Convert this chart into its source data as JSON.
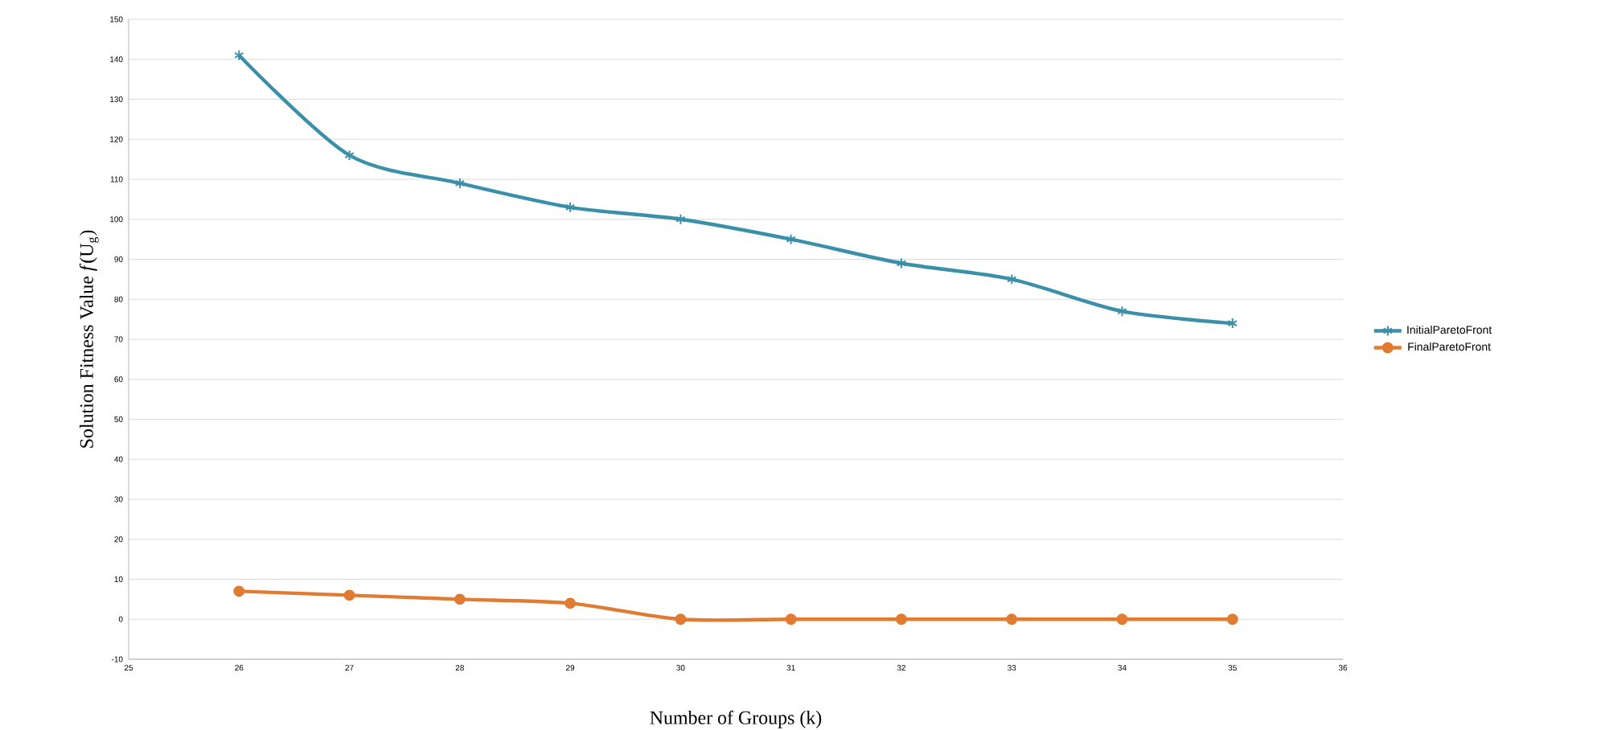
{
  "chart_data": {
    "type": "line",
    "xlabel": "Number of Groups (k)",
    "ylabel": "Solution Fitness Value *f*(U$_{g}$)",
    "x": [
      26,
      27,
      28,
      29,
      30,
      31,
      32,
      33,
      34,
      35
    ],
    "series": [
      {
        "name": "InitialParetoFront",
        "color": "#3a8fa9",
        "marker": "cross",
        "values": [
          141,
          116,
          109,
          103,
          100,
          95,
          89,
          85,
          77,
          74
        ]
      },
      {
        "name": "FinalParetoFront",
        "color": "#e07b32",
        "marker": "circle",
        "values": [
          7,
          6,
          5,
          4,
          0,
          0,
          0,
          0,
          0,
          0
        ]
      }
    ],
    "xlim": [
      25,
      36
    ],
    "xticks": [
      25,
      26,
      27,
      28,
      29,
      30,
      31,
      32,
      33,
      34,
      35,
      36
    ],
    "ylim": [
      -10,
      150
    ],
    "yticks": [
      -10,
      0,
      10,
      20,
      30,
      40,
      50,
      60,
      70,
      80,
      90,
      100,
      110,
      120,
      130,
      140,
      150
    ],
    "grid": "y",
    "legend": "right",
    "line_style": "solid"
  }
}
